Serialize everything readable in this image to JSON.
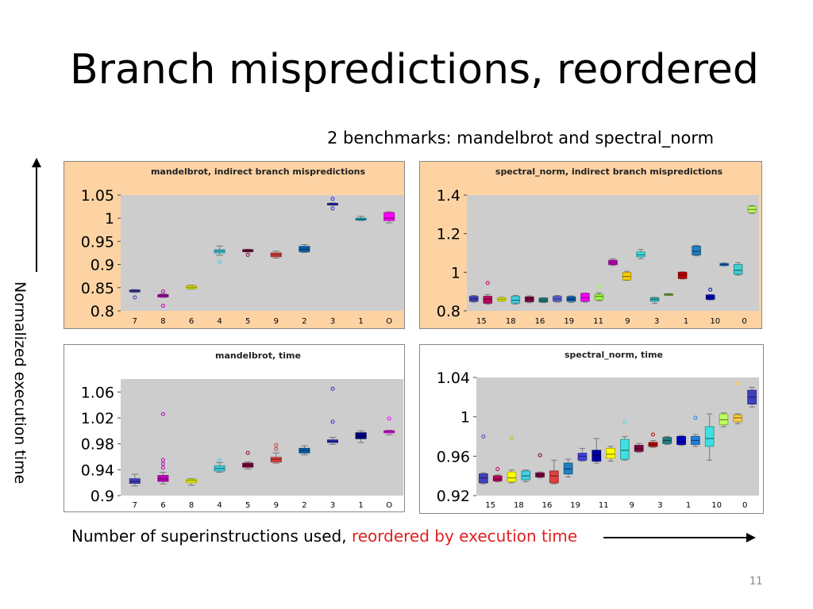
{
  "slide": {
    "title": "Branch mispredictions, reordered",
    "subtitle": "2 benchmarks: mandelbrot and spectral_norm",
    "y_axis_label": "Normalized execution time",
    "x_axis_label_prefix": "Number of superinstructions used, ",
    "x_axis_label_highlight": "reordered by execution time",
    "page_number": "11"
  },
  "chart_data": [
    {
      "type": "boxplot",
      "title": "mandelbrot, indirect branch mispredictions",
      "background": "#fdd3a4",
      "categories": [
        "7",
        "8",
        "6",
        "4",
        "5",
        "9",
        "2",
        "3",
        "1",
        "O"
      ],
      "ylim": [
        0.8,
        1.05
      ],
      "yticks": [
        "1.05",
        "1",
        "0.95",
        "0.9",
        "0.85",
        "0.8"
      ],
      "colors": [
        "#4040c0",
        "#c000c0",
        "#ffff00",
        "#40d0e0",
        "#800040",
        "#e04040",
        "#0060b0",
        "#3030d0",
        "#20c0e0",
        "#ff00ff"
      ],
      "boxes": [
        {
          "q1": 0.841,
          "q3": 0.845,
          "lo": 0.84,
          "hi": 0.846,
          "med": 0.843,
          "out": [
            0.829
          ]
        },
        {
          "q1": 0.83,
          "q3": 0.835,
          "lo": 0.829,
          "hi": 0.837,
          "med": 0.833,
          "out": [
            0.842,
            0.811
          ]
        },
        {
          "q1": 0.848,
          "q3": 0.854,
          "lo": 0.847,
          "hi": 0.855,
          "med": 0.851,
          "out": []
        },
        {
          "q1": 0.925,
          "q3": 0.932,
          "lo": 0.92,
          "hi": 0.94,
          "med": 0.929,
          "out": [
            0.906
          ]
        },
        {
          "q1": 0.928,
          "q3": 0.932,
          "lo": 0.927,
          "hi": 0.933,
          "med": 0.93,
          "out": [
            0.921
          ]
        },
        {
          "q1": 0.917,
          "q3": 0.925,
          "lo": 0.914,
          "hi": 0.929,
          "med": 0.921,
          "out": []
        },
        {
          "q1": 0.928,
          "q3": 0.939,
          "lo": 0.926,
          "hi": 0.943,
          "med": 0.933,
          "out": []
        },
        {
          "q1": 1.029,
          "q3": 1.032,
          "lo": 1.028,
          "hi": 1.033,
          "med": 1.031,
          "out": [
            1.042,
            1.021
          ]
        },
        {
          "q1": 0.996,
          "q3": 1.0,
          "lo": 0.995,
          "hi": 1.004,
          "med": 0.998,
          "out": []
        },
        {
          "q1": 0.995,
          "q3": 1.012,
          "lo": 0.99,
          "hi": 1.014,
          "med": 1.0,
          "out": []
        }
      ]
    },
    {
      "type": "boxplot",
      "title": "spectral_norm, indirect branch mispredictions",
      "background": "#fdd3a4",
      "categories": [
        "15",
        "18",
        "16",
        "19",
        "11",
        "9",
        "3",
        "1",
        "10",
        "0"
      ],
      "ylim": [
        0.8,
        1.4
      ],
      "yticks": [
        "1.4",
        "1.2",
        "1",
        "0.8"
      ],
      "colors": [
        "#4040c0",
        "#c00060",
        "#ffff00",
        "#40d0e0",
        "#800040",
        "#208080",
        "#6060e0",
        "#0060b0",
        "#ff00ff",
        "#a0ff40",
        "#c000c0",
        "#ffd000",
        "#40e0e0",
        "#40c0c0",
        "#80c040",
        "#c00000",
        "#2080c0",
        "#0000c0",
        "#2080e0",
        "#40d0d0",
        "#c0ff60"
      ],
      "boxes": [
        {
          "q1": 0.85,
          "q3": 0.875,
          "lo": 0.845,
          "hi": 0.88,
          "med": 0.862,
          "out": []
        },
        {
          "q1": 0.84,
          "q3": 0.875,
          "lo": 0.835,
          "hi": 0.885,
          "med": 0.86,
          "out": [
            0.945
          ]
        },
        {
          "q1": 0.852,
          "q3": 0.868,
          "lo": 0.85,
          "hi": 0.87,
          "med": 0.86,
          "out": []
        },
        {
          "q1": 0.84,
          "q3": 0.875,
          "lo": 0.835,
          "hi": 0.88,
          "med": 0.855,
          "out": []
        },
        {
          "q1": 0.848,
          "q3": 0.872,
          "lo": 0.842,
          "hi": 0.878,
          "med": 0.862,
          "out": []
        },
        {
          "q1": 0.846,
          "q3": 0.866,
          "lo": 0.843,
          "hi": 0.868,
          "med": 0.855,
          "out": []
        },
        {
          "q1": 0.85,
          "q3": 0.875,
          "lo": 0.845,
          "hi": 0.88,
          "med": 0.862,
          "out": []
        },
        {
          "q1": 0.85,
          "q3": 0.873,
          "lo": 0.843,
          "hi": 0.878,
          "med": 0.86,
          "out": []
        },
        {
          "q1": 0.85,
          "q3": 0.89,
          "lo": 0.845,
          "hi": 0.892,
          "med": 0.868,
          "out": []
        },
        {
          "q1": 0.857,
          "q3": 0.885,
          "lo": 0.852,
          "hi": 0.893,
          "med": 0.875,
          "out": [
            0.925
          ]
        },
        {
          "q1": 1.04,
          "q3": 1.062,
          "lo": 1.035,
          "hi": 1.07,
          "med": 1.05,
          "out": []
        },
        {
          "q1": 0.96,
          "q3": 0.998,
          "lo": 0.958,
          "hi": 1.005,
          "med": 0.978,
          "out": []
        },
        {
          "q1": 1.08,
          "q3": 1.105,
          "lo": 1.07,
          "hi": 1.118,
          "med": 1.09,
          "out": []
        },
        {
          "q1": 0.85,
          "q3": 0.868,
          "lo": 0.838,
          "hi": 0.87,
          "med": 0.86,
          "out": []
        },
        {
          "q1": 0.885,
          "q3": 0.888,
          "lo": 0.884,
          "hi": 0.889,
          "med": 0.886,
          "out": []
        },
        {
          "q1": 0.968,
          "q3": 1.0,
          "lo": 0.965,
          "hi": 1.002,
          "med": 0.985,
          "out": []
        },
        {
          "q1": 1.09,
          "q3": 1.135,
          "lo": 1.085,
          "hi": 1.14,
          "med": 1.108,
          "out": []
        },
        {
          "q1": 0.86,
          "q3": 0.882,
          "lo": 0.856,
          "hi": 0.884,
          "med": 0.87,
          "out": [
            0.91
          ]
        },
        {
          "q1": 1.035,
          "q3": 1.045,
          "lo": 1.033,
          "hi": 1.048,
          "med": 1.04,
          "out": []
        },
        {
          "q1": 0.99,
          "q3": 1.04,
          "lo": 0.985,
          "hi": 1.05,
          "med": 1.01,
          "out": []
        },
        {
          "q1": 1.31,
          "q3": 1.34,
          "lo": 1.305,
          "hi": 1.345,
          "med": 1.325,
          "out": []
        }
      ]
    },
    {
      "type": "boxplot",
      "title": "mandelbrot, time",
      "background": "#ffffff",
      "categories": [
        "7",
        "6",
        "8",
        "4",
        "5",
        "9",
        "2",
        "3",
        "1",
        "O"
      ],
      "ylim": [
        0.9,
        1.08
      ],
      "yticks": [
        "1.06",
        "1.02",
        "0.98",
        "0.94",
        "0.9"
      ],
      "colors": [
        "#4040c0",
        "#c000c0",
        "#ffff00",
        "#40d0e0",
        "#800040",
        "#e04040",
        "#0060b0",
        "#3030d0",
        "#000080",
        "#ff00ff"
      ],
      "boxes": [
        {
          "q1": 0.919,
          "q3": 0.926,
          "lo": 0.915,
          "hi": 0.933,
          "med": 0.922,
          "out": []
        },
        {
          "q1": 0.922,
          "q3": 0.931,
          "lo": 0.918,
          "hi": 0.936,
          "med": 0.926,
          "out": [
            1.026,
            0.955,
            0.949,
            0.943
          ]
        },
        {
          "q1": 0.92,
          "q3": 0.925,
          "lo": 0.916,
          "hi": 0.926,
          "med": 0.923,
          "out": []
        },
        {
          "q1": 0.938,
          "q3": 0.946,
          "lo": 0.936,
          "hi": 0.951,
          "med": 0.942,
          "out": [
            0.955
          ]
        },
        {
          "q1": 0.944,
          "q3": 0.95,
          "lo": 0.941,
          "hi": 0.952,
          "med": 0.947,
          "out": [
            0.966
          ]
        },
        {
          "q1": 0.952,
          "q3": 0.959,
          "lo": 0.95,
          "hi": 0.966,
          "med": 0.956,
          "out": [
            0.978,
            0.972
          ]
        },
        {
          "q1": 0.966,
          "q3": 0.973,
          "lo": 0.963,
          "hi": 0.977,
          "med": 0.97,
          "out": []
        },
        {
          "q1": 0.982,
          "q3": 0.986,
          "lo": 0.979,
          "hi": 0.99,
          "med": 0.984,
          "out": [
            1.065,
            1.014
          ]
        },
        {
          "q1": 0.988,
          "q3": 0.997,
          "lo": 0.982,
          "hi": 1.0,
          "med": 0.992,
          "out": []
        },
        {
          "q1": 0.997,
          "q3": 1.0,
          "lo": 0.994,
          "hi": 1.001,
          "med": 0.999,
          "out": [
            1.019
          ]
        }
      ]
    },
    {
      "type": "boxplot",
      "title": "spectral_norm, time",
      "background": "#ffffff",
      "categories": [
        "15",
        "18",
        "16",
        "19",
        "11",
        "9",
        "3",
        "1",
        "10",
        "0"
      ],
      "ylim": [
        0.92,
        1.04
      ],
      "yticks": [
        "1.04",
        "1",
        "0.96",
        "0.92"
      ],
      "colors": [
        "#4040c0",
        "#c00060",
        "#ffff00",
        "#40d0e0",
        "#800040",
        "#e04040",
        "#2080c0",
        "#4040e0",
        "#0000a0",
        "#ffff00",
        "#40e0e0",
        "#800040",
        "#c00000",
        "#208080",
        "#0000c0",
        "#2080e0",
        "#40e0e0",
        "#c0ff60",
        "#ffd040"
      ],
      "boxes": [
        {
          "q1": 0.933,
          "q3": 0.942,
          "lo": 0.932,
          "hi": 0.943,
          "med": 0.938,
          "out": [
            0.98
          ]
        },
        {
          "q1": 0.935,
          "q3": 0.94,
          "lo": 0.934,
          "hi": 0.941,
          "med": 0.937,
          "out": [
            0.947
          ]
        },
        {
          "q1": 0.934,
          "q3": 0.944,
          "lo": 0.933,
          "hi": 0.946,
          "med": 0.938,
          "out": [
            0.978
          ]
        },
        {
          "q1": 0.936,
          "q3": 0.945,
          "lo": 0.934,
          "hi": 0.946,
          "med": 0.94,
          "out": []
        },
        {
          "q1": 0.939,
          "q3": 0.943,
          "lo": 0.938,
          "hi": 0.944,
          "med": 0.941,
          "out": [
            0.961
          ]
        },
        {
          "q1": 0.933,
          "q3": 0.945,
          "lo": 0.932,
          "hi": 0.956,
          "med": 0.94,
          "out": []
        },
        {
          "q1": 0.942,
          "q3": 0.953,
          "lo": 0.939,
          "hi": 0.957,
          "med": 0.947,
          "out": []
        },
        {
          "q1": 0.956,
          "q3": 0.963,
          "lo": 0.955,
          "hi": 0.968,
          "med": 0.96,
          "out": []
        },
        {
          "q1": 0.955,
          "q3": 0.966,
          "lo": 0.953,
          "hi": 0.978,
          "med": 0.961,
          "out": []
        },
        {
          "q1": 0.958,
          "q3": 0.968,
          "lo": 0.955,
          "hi": 0.97,
          "med": 0.962,
          "out": []
        },
        {
          "q1": 0.957,
          "q3": 0.977,
          "lo": 0.956,
          "hi": 0.98,
          "med": 0.966,
          "out": [
            0.995
          ]
        },
        {
          "q1": 0.965,
          "q3": 0.971,
          "lo": 0.964,
          "hi": 0.973,
          "med": 0.968,
          "out": []
        },
        {
          "q1": 0.97,
          "q3": 0.974,
          "lo": 0.969,
          "hi": 0.976,
          "med": 0.972,
          "out": [
            0.982
          ]
        },
        {
          "q1": 0.973,
          "q3": 0.979,
          "lo": 0.972,
          "hi": 0.98,
          "med": 0.976,
          "out": []
        },
        {
          "q1": 0.972,
          "q3": 0.98,
          "lo": 0.971,
          "hi": 0.981,
          "med": 0.975,
          "out": []
        },
        {
          "q1": 0.972,
          "q3": 0.98,
          "lo": 0.97,
          "hi": 0.982,
          "med": 0.976,
          "out": [
            0.999
          ]
        },
        {
          "q1": 0.97,
          "q3": 0.99,
          "lo": 0.956,
          "hi": 1.003,
          "med": 0.978,
          "out": []
        },
        {
          "q1": 0.992,
          "q3": 1.003,
          "lo": 0.99,
          "hi": 1.004,
          "med": 0.997,
          "out": []
        },
        {
          "q1": 0.995,
          "q3": 1.002,
          "lo": 0.993,
          "hi": 1.003,
          "med": 0.999,
          "out": [
            1.034
          ]
        },
        {
          "q1": 1.013,
          "q3": 1.027,
          "lo": 1.01,
          "hi": 1.03,
          "med": 1.02,
          "out": []
        }
      ]
    }
  ]
}
